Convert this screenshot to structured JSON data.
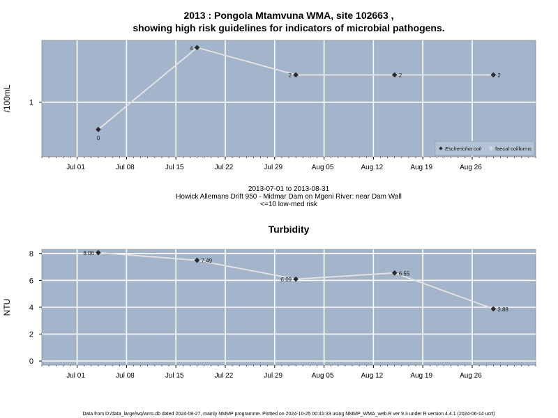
{
  "title_line1": "2013 : Pongola Mtamvuna WMA, site 102663 ,",
  "title_line2": "showing high risk guidelines for indicators of microbial pathogens.",
  "middle_text": {
    "date_range": "2013-07-01 to 2013-08-31",
    "site_description": "Howick Allemans Drift 950 - Midmar Dam on Mgeni River: near Dam Wall",
    "risk_note": "<=10 low-med risk"
  },
  "footer": "Data from D:/data_large/wq/wms.db dated 2024-08-27, mainly NMMP programme. Plotted on 2024-10-25 00:41:33 using NMMP_WMA_web.R ver 9.3 under R version 4.4.1 (2024-06-14 ucrt)",
  "colors": {
    "panel_bg": "#a3b4cb",
    "grid": "#ffffff",
    "line": "#e2e2e2",
    "point": "#2b2b2b"
  },
  "chart_data": [
    {
      "type": "line",
      "title": "",
      "ylabel": "/100mL",
      "scale": "log",
      "x_axis": {
        "range": [
          "2013-06-26",
          "2013-09-04"
        ],
        "ticks": [
          "2013-07-01",
          "2013-07-08",
          "2013-07-15",
          "2013-07-22",
          "2013-07-29",
          "2013-08-05",
          "2013-08-12",
          "2013-08-19",
          "2013-08-26"
        ],
        "tick_labels": [
          "Jul 01",
          "Jul 08",
          "Jul 15",
          "Jul 22",
          "Jul 29",
          "Aug 05",
          "Aug 12",
          "Aug 19",
          "Aug 26"
        ]
      },
      "y_axis": {
        "ylim": [
          0.25,
          4.8
        ],
        "ticks": [
          1
        ],
        "tick_labels": [
          "1"
        ]
      },
      "grid": true,
      "legend": {
        "placement": "bottom-right",
        "entries": [
          {
            "label": "Escherichia coli",
            "marker": "diamond-filled",
            "italic": true
          },
          {
            "label": "faecal coliforms",
            "marker": "diamond-open",
            "italic": false
          }
        ]
      },
      "series": [
        {
          "name": "Escherichia coli",
          "x": [
            "2013-07-04",
            "2013-07-18",
            "2013-08-01",
            "2013-08-15",
            "2013-08-29"
          ],
          "y": [
            0.5,
            4,
            2,
            2,
            2
          ],
          "labels": [
            "0",
            "4",
            "2",
            "2",
            "2"
          ],
          "label_pos": [
            "below",
            "left",
            "left",
            "right",
            "right"
          ]
        }
      ]
    },
    {
      "type": "line",
      "title": "Turbidity",
      "ylabel": "NTU",
      "scale": "linear",
      "x_axis": {
        "range": [
          "2013-06-26",
          "2013-09-04"
        ],
        "ticks": [
          "2013-07-01",
          "2013-07-08",
          "2013-07-15",
          "2013-07-22",
          "2013-07-29",
          "2013-08-05",
          "2013-08-12",
          "2013-08-19",
          "2013-08-26"
        ],
        "tick_labels": [
          "Jul 01",
          "Jul 08",
          "Jul 15",
          "Jul 22",
          "Jul 29",
          "Aug 05",
          "Aug 12",
          "Aug 19",
          "Aug 26"
        ]
      },
      "y_axis": {
        "ylim": [
          -0.3,
          8.3
        ],
        "ticks": [
          0,
          2,
          4,
          6,
          8
        ],
        "tick_labels": [
          "0",
          "2",
          "4",
          "6",
          "8"
        ]
      },
      "grid": true,
      "series": [
        {
          "name": "Turbidity",
          "x": [
            "2013-07-04",
            "2013-07-18",
            "2013-08-01",
            "2013-08-15",
            "2013-08-29"
          ],
          "y": [
            8.06,
            7.49,
            6.09,
            6.55,
            3.88
          ],
          "labels": [
            "8.06",
            "7.49",
            "6.09",
            "6.55",
            "3.88"
          ],
          "label_pos": [
            "left",
            "right",
            "left",
            "right",
            "right"
          ]
        }
      ]
    }
  ]
}
